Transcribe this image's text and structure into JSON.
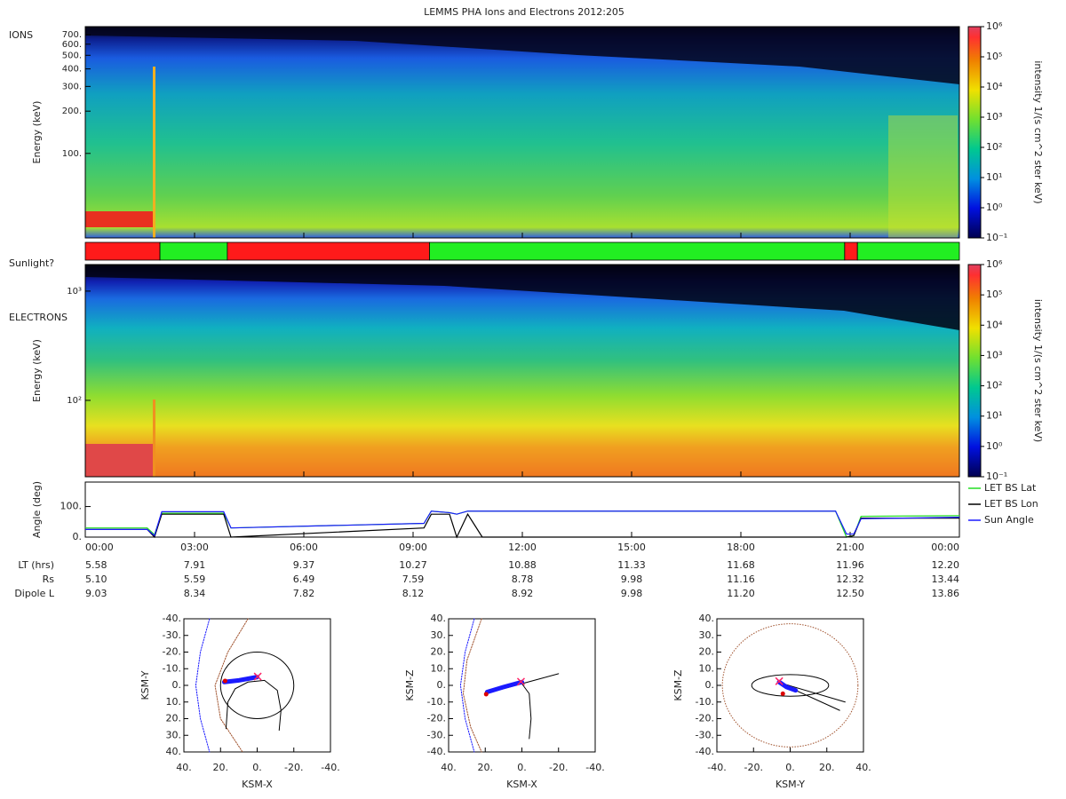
{
  "title": "LEMMS PHA Ions and Electrons  2012:205",
  "chart_data": [
    {
      "type": "spectrogram",
      "panel_label": "IONS",
      "y_label": "Energy (keV)",
      "log_y": true,
      "ylim": [
        25,
        800
      ],
      "yticks": [
        {
          "value": 100,
          "label": "100."
        },
        {
          "value": 200,
          "label": "200."
        },
        {
          "value": 300,
          "label": "300."
        },
        {
          "value": 400,
          "label": "400."
        },
        {
          "value": 500,
          "label": "500."
        },
        {
          "value": 600,
          "label": "600."
        },
        {
          "value": 700,
          "label": "700."
        }
      ],
      "colorbar": {
        "label": "intensity 1/(s cm^2 ster keV)",
        "log": true,
        "lim": [
          0.1,
          1000000
        ],
        "ticks": [
          {
            "value": 0.1,
            "label": "10⁻¹"
          },
          {
            "value": 1,
            "label": "10⁰"
          },
          {
            "value": 10,
            "label": "10¹"
          },
          {
            "value": 100,
            "label": "10²"
          },
          {
            "value": 1000,
            "label": "10³"
          },
          {
            "value": 10000,
            "label": "10⁴"
          },
          {
            "value": 100000,
            "label": "10⁵"
          },
          {
            "value": 1000000,
            "label": "10⁶"
          }
        ]
      }
    },
    {
      "type": "timeline",
      "label": "Sunlight?",
      "xlim": [
        0,
        24
      ],
      "segments": [
        {
          "start": 0,
          "end": 2.05,
          "color": "#ff1a1a"
        },
        {
          "start": 2.05,
          "end": 3.9,
          "color": "#22ee22"
        },
        {
          "start": 3.9,
          "end": 9.45,
          "color": "#ff1a1a"
        },
        {
          "start": 9.45,
          "end": 20.85,
          "color": "#22ee22"
        },
        {
          "start": 20.85,
          "end": 21.2,
          "color": "#ff1a1a"
        },
        {
          "start": 21.2,
          "end": 24,
          "color": "#22ee22"
        }
      ]
    },
    {
      "type": "spectrogram",
      "panel_label": "ELECTRONS",
      "y_label": "Energy (keV)",
      "log_y": true,
      "ylim": [
        20,
        1750
      ],
      "yticks": [
        {
          "value": 100,
          "label": "10²"
        },
        {
          "value": 1000,
          "label": "10³"
        }
      ],
      "colorbar": {
        "label": "intensity 1/(s cm^2 ster keV)",
        "log": true,
        "lim": [
          0.1,
          1000000
        ],
        "ticks": [
          {
            "value": 0.1,
            "label": "10⁻¹"
          },
          {
            "value": 1,
            "label": "10⁰"
          },
          {
            "value": 10,
            "label": "10¹"
          },
          {
            "value": 100,
            "label": "10²"
          },
          {
            "value": 1000,
            "label": "10³"
          },
          {
            "value": 10000,
            "label": "10⁴"
          },
          {
            "value": 100000,
            "label": "10⁵"
          },
          {
            "value": 1000000,
            "label": "10⁶"
          }
        ]
      }
    },
    {
      "type": "line",
      "y_label": "Angle (deg)",
      "xlim": [
        0,
        24
      ],
      "xticks": [
        {
          "value": 0,
          "label": "00:00"
        },
        {
          "value": 3,
          "label": "03:00"
        },
        {
          "value": 6,
          "label": "06:00"
        },
        {
          "value": 9,
          "label": "09:00"
        },
        {
          "value": 12,
          "label": "12:00"
        },
        {
          "value": 15,
          "label": "15:00"
        },
        {
          "value": 18,
          "label": "18:00"
        },
        {
          "value": 21,
          "label": "21:00"
        },
        {
          "value": 24,
          "label": "00:00"
        }
      ],
      "ylim": [
        0,
        180
      ],
      "yticks": [
        {
          "value": 0,
          "label": "0."
        },
        {
          "value": 100,
          "label": "100."
        }
      ],
      "x": [
        0,
        1.7,
        1.9,
        2.1,
        3.8,
        4.0,
        9.3,
        9.5,
        10.0,
        10.2,
        10.5,
        10.9,
        11.0,
        20.6,
        20.9,
        21.1,
        21.3,
        24
      ],
      "series": [
        {
          "name": "LET BS Lat",
          "color": "#22dd22",
          "values": [
            30,
            30,
            8,
            78,
            78,
            30,
            45,
            85,
            80,
            75,
            85,
            85,
            85,
            85,
            0,
            5,
            68,
            70
          ]
        },
        {
          "name": "LET BS Lon",
          "color": "#000000",
          "values": [
            25,
            25,
            0,
            75,
            75,
            0,
            30,
            75,
            75,
            0,
            75,
            0,
            0,
            0,
            0,
            5,
            62,
            62
          ]
        },
        {
          "name": "Sun Angle",
          "color": "#1a1aff",
          "values": [
            25,
            25,
            5,
            83,
            83,
            30,
            45,
            85,
            80,
            75,
            85,
            85,
            85,
            85,
            10,
            10,
            60,
            65
          ]
        }
      ]
    },
    {
      "type": "table",
      "rows": [
        {
          "label": "LT (hrs)",
          "values": [
            "5.58",
            "7.91",
            "9.37",
            "10.27",
            "10.88",
            "11.33",
            "11.68",
            "11.96",
            "12.20"
          ]
        },
        {
          "label": "Rs",
          "values": [
            "5.10",
            "5.59",
            "6.49",
            "7.59",
            "8.78",
            "9.98",
            "11.16",
            "12.32",
            "13.44"
          ]
        },
        {
          "label": "Dipole L",
          "values": [
            "9.03",
            "8.34",
            "7.82",
            "8.12",
            "8.92",
            "9.98",
            "11.20",
            "12.50",
            "13.86"
          ]
        }
      ]
    },
    {
      "type": "orbit",
      "x_label": "KSM-X",
      "y_label": "KSM-Y",
      "xlim": [
        40,
        -40
      ],
      "ylim": [
        40,
        -40
      ],
      "xticks": [
        {
          "value": 40,
          "label": "40."
        },
        {
          "value": 20,
          "label": "20."
        },
        {
          "value": 0,
          "label": "0."
        },
        {
          "value": -20,
          "label": "-20."
        },
        {
          "value": -40,
          "label": "-40."
        }
      ],
      "yticks": [
        {
          "value": -40,
          "label": "-40."
        },
        {
          "value": -30,
          "label": "-30."
        },
        {
          "value": -20,
          "label": "-20."
        },
        {
          "value": -10,
          "label": "-10."
        },
        {
          "value": 0,
          "label": "0."
        },
        {
          "value": 10,
          "label": "10."
        },
        {
          "value": 20,
          "label": "20."
        },
        {
          "value": 30,
          "label": "30."
        },
        {
          "value": 40,
          "label": "40."
        }
      ],
      "curves": [
        {
          "color": "#1a1aff",
          "dotted": true,
          "x": [
            26,
            31,
            33.5,
            31,
            26
          ],
          "y": [
            -40,
            -20,
            0,
            20,
            40
          ]
        },
        {
          "color": "#a0522d",
          "dotted": true,
          "x": [
            5,
            16,
            23,
            20,
            8
          ],
          "y": [
            -40,
            -20,
            0,
            20,
            40
          ]
        },
        {
          "color": "#000000",
          "dotted": false,
          "x": [
            17,
            16,
            12,
            5,
            -4,
            -11,
            -13,
            -12
          ],
          "y": [
            26,
            10,
            2,
            -2,
            -3,
            3,
            15,
            27
          ]
        },
        {
          "color": "#1a1aff",
          "dotted": false,
          "thick": true,
          "x": [
            18,
            10,
            5,
            0
          ],
          "y": [
            -2,
            -3,
            -4,
            -5
          ]
        }
      ],
      "ellipses": [
        {
          "cx": 0,
          "cy": 0,
          "rx": 20,
          "ry": 20,
          "color": "#000000",
          "dotted": false
        }
      ],
      "points": [
        {
          "x": 17.5,
          "y": -2.7,
          "color": "#dd0000",
          "symbol": "dot"
        },
        {
          "x": -0.3,
          "y": -5.3,
          "color": "#ff2266",
          "symbol": "x"
        }
      ]
    },
    {
      "type": "orbit",
      "x_label": "KSM-X",
      "y_label": "KSM-Z",
      "xlim": [
        40,
        -40
      ],
      "ylim": [
        -40,
        40
      ],
      "xticks": [
        {
          "value": 40,
          "label": "40."
        },
        {
          "value": 20,
          "label": "20."
        },
        {
          "value": 0,
          "label": "0."
        },
        {
          "value": -20,
          "label": "-20."
        },
        {
          "value": -40,
          "label": "-40."
        }
      ],
      "yticks": [
        {
          "value": 40,
          "label": "40."
        },
        {
          "value": 30,
          "label": "30."
        },
        {
          "value": 20,
          "label": "20."
        },
        {
          "value": 10,
          "label": "10."
        },
        {
          "value": 0,
          "label": "0."
        },
        {
          "value": -10,
          "label": "-10."
        },
        {
          "value": -20,
          "label": "-20."
        },
        {
          "value": -30,
          "label": "-30."
        },
        {
          "value": -40,
          "label": "-40."
        }
      ],
      "curves": [
        {
          "color": "#1a1aff",
          "dotted": true,
          "x": [
            26,
            31,
            33.5,
            31,
            26
          ],
          "y": [
            40,
            20,
            0,
            -20,
            -40
          ]
        },
        {
          "color": "#a0522d",
          "dotted": true,
          "x": [
            22,
            30,
            32,
            28,
            22
          ],
          "y": [
            40,
            15,
            -5,
            -25,
            -40
          ]
        },
        {
          "color": "#000000",
          "dotted": false,
          "x": [
            20,
            10,
            0,
            -10,
            -20
          ],
          "y": [
            -5,
            -2,
            1,
            4,
            7
          ]
        },
        {
          "color": "#000000",
          "dotted": false,
          "x": [
            0,
            -4,
            -5,
            -4
          ],
          "y": [
            1,
            -5,
            -20,
            -32
          ]
        },
        {
          "color": "#1a1aff",
          "dotted": false,
          "thick": true,
          "x": [
            19,
            10,
            0
          ],
          "y": [
            -4,
            -1,
            2
          ]
        }
      ],
      "ellipses": [],
      "points": [
        {
          "x": 19.5,
          "y": -5.3,
          "color": "#dd0000",
          "symbol": "dot"
        },
        {
          "x": 0.5,
          "y": 2.2,
          "color": "#ff2266",
          "symbol": "x"
        }
      ]
    },
    {
      "type": "orbit",
      "x_label": "KSM-Y",
      "y_label": "KSM-Z",
      "xlim": [
        -40,
        40
      ],
      "ylim": [
        -40,
        40
      ],
      "xticks": [
        {
          "value": -40,
          "label": "-40."
        },
        {
          "value": -20,
          "label": "-20."
        },
        {
          "value": 0,
          "label": "0."
        },
        {
          "value": 20,
          "label": "20."
        },
        {
          "value": 40,
          "label": "40."
        }
      ],
      "yticks": [
        {
          "value": 40,
          "label": "40."
        },
        {
          "value": 30,
          "label": "30."
        },
        {
          "value": 20,
          "label": "20."
        },
        {
          "value": 10,
          "label": "10."
        },
        {
          "value": 0,
          "label": "0."
        },
        {
          "value": -10,
          "label": "-10."
        },
        {
          "value": -20,
          "label": "-20."
        },
        {
          "value": -30,
          "label": "-30."
        },
        {
          "value": -40,
          "label": "-40."
        }
      ],
      "curves": [
        {
          "color": "#000000",
          "dotted": false,
          "x": [
            -7,
            27
          ],
          "y": [
            2,
            -15
          ]
        },
        {
          "color": "#000000",
          "dotted": false,
          "x": [
            -7,
            30
          ],
          "y": [
            2,
            -10
          ]
        },
        {
          "color": "#1a1aff",
          "dotted": false,
          "thick": true,
          "x": [
            -6,
            -2,
            3
          ],
          "y": [
            2,
            -1,
            -3
          ]
        }
      ],
      "ellipses": [
        {
          "cx": 0,
          "cy": 0,
          "rx": 37,
          "ry": 37,
          "color": "#a0522d",
          "dotted": true
        },
        {
          "cx": 0,
          "cy": 0,
          "rx": 21,
          "ry": 6.5,
          "color": "#000000",
          "dotted": false
        }
      ],
      "points": [
        {
          "x": -4,
          "y": -5,
          "color": "#dd0000",
          "symbol": "dot"
        },
        {
          "x": -6,
          "y": 2.5,
          "color": "#ff2266",
          "symbol": "x"
        }
      ]
    }
  ]
}
